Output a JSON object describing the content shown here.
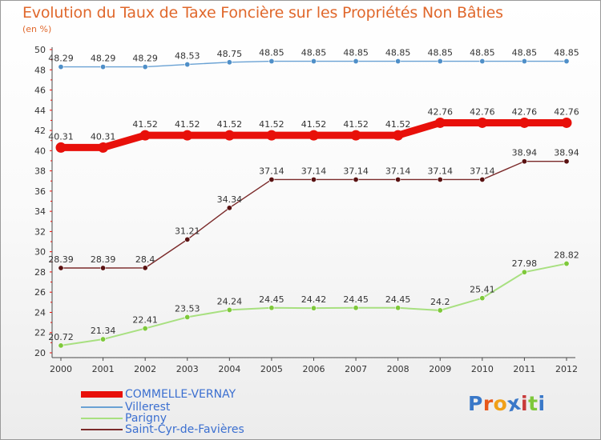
{
  "chart_data": {
    "type": "line",
    "title": "Evolution du Taux de Taxe Foncière sur les Propriétés Non Bâties",
    "subtitle": "(en %)",
    "xlabel": "",
    "ylabel": "",
    "x": [
      "2000",
      "2001",
      "2002",
      "2003",
      "2004",
      "2005",
      "2006",
      "2007",
      "2008",
      "2009",
      "2010",
      "2011",
      "2012"
    ],
    "ylim": [
      20,
      50
    ],
    "yticks": [
      "20",
      "22",
      "24",
      "26",
      "28",
      "30",
      "32",
      "34",
      "36",
      "38",
      "40",
      "42",
      "44",
      "46",
      "48",
      "50"
    ],
    "grid": false,
    "series": [
      {
        "name": "COMMELLE-VERNAY",
        "color": "#e8100a",
        "line_width": "thick",
        "values": [
          40.31,
          40.31,
          41.52,
          41.52,
          41.52,
          41.52,
          41.52,
          41.52,
          41.52,
          42.76,
          42.76,
          42.76,
          42.76
        ],
        "labels": [
          "40.31",
          "40.31",
          "41.52",
          "41.52",
          "41.52",
          "41.52",
          "41.52",
          "41.52",
          "41.52",
          "42.76",
          "42.76",
          "42.76",
          "42.76"
        ]
      },
      {
        "name": "Villerest",
        "color": "#6aa2d4",
        "line_width": "thin",
        "values": [
          48.29,
          48.29,
          48.29,
          48.53,
          48.75,
          48.85,
          48.85,
          48.85,
          48.85,
          48.85,
          48.85,
          48.85,
          48.85
        ],
        "labels": [
          "48.29",
          "48.29",
          "48.29",
          "48.53",
          "48.75",
          "48.85",
          "48.85",
          "48.85",
          "48.85",
          "48.85",
          "48.85",
          "48.85",
          "48.85"
        ]
      },
      {
        "name": "Parigny",
        "color": "#a8e080",
        "line_width": "medium",
        "values": [
          20.72,
          21.34,
          22.41,
          23.53,
          24.24,
          24.45,
          24.42,
          24.45,
          24.45,
          24.2,
          25.41,
          27.98,
          28.82
        ],
        "labels": [
          "20.72",
          "21.34",
          "22.41",
          "23.53",
          "24.24",
          "24.45",
          "24.42",
          "24.45",
          "24.45",
          "24.2",
          "25.41",
          "27.98",
          "28.82"
        ]
      },
      {
        "name": "Saint-Cyr-de-Favières",
        "color": "#7b2a2a",
        "line_width": "thin",
        "values": [
          28.39,
          28.39,
          28.4,
          31.21,
          34.34,
          37.14,
          37.14,
          37.14,
          37.14,
          37.14,
          37.14,
          38.94,
          38.94
        ],
        "labels": [
          "28.39",
          "28.39",
          "28.4",
          "31.21",
          "34.34",
          "37.14",
          "37.14",
          "37.14",
          "37.14",
          "37.14",
          "37.14",
          "38.94",
          "38.94"
        ]
      }
    ],
    "legend": {
      "placement": "bottom-left"
    }
  },
  "logo": {
    "text": "Proxiti"
  }
}
